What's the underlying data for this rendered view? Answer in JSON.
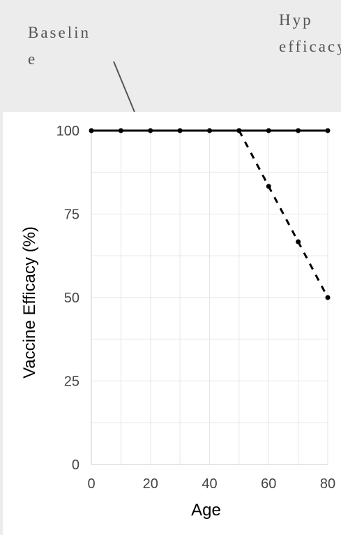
{
  "annotations": {
    "baseline": "Baselin\ne",
    "hypothetical": "Hyp\nefficacy"
  },
  "chart_data": {
    "type": "line",
    "xlabel": "Age",
    "ylabel": "Vaccine Efficacy (%)",
    "xlim": [
      0,
      80
    ],
    "ylim": [
      0,
      100
    ],
    "xticks": [
      0,
      20,
      40,
      60,
      80
    ],
    "yticks": [
      0,
      25,
      50,
      75,
      100
    ],
    "grid": true,
    "series": [
      {
        "style": "solid",
        "color": "#000000",
        "x": [
          0,
          10,
          20,
          30,
          40,
          50,
          60,
          70,
          80
        ],
        "y": [
          100,
          100,
          100,
          100,
          100,
          100,
          100,
          100,
          100
        ]
      },
      {
        "style": "dashed",
        "color": "#000000",
        "x": [
          50,
          60,
          70,
          80
        ],
        "y": [
          100,
          83.3,
          66.7,
          50
        ]
      }
    ]
  }
}
